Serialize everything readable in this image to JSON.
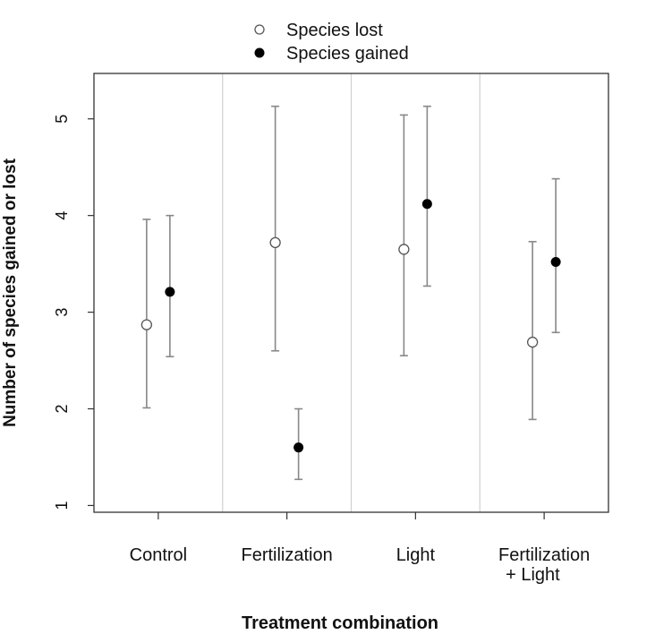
{
  "chart_data": {
    "type": "scatter",
    "xlabel": "Treatment combination",
    "ylabel": "Number of species gained or lost",
    "ylim": [
      0.93,
      5.47
    ],
    "yticks": [
      "1",
      "2",
      "3",
      "4",
      "5"
    ],
    "grid": false,
    "legend_position": "top",
    "categories": [
      "Control",
      "Fertilization",
      "Light",
      "Fertilization\n+ Light"
    ],
    "series": [
      {
        "name": "Species lost",
        "marker": "open-circle",
        "values": [
          2.87,
          3.72,
          3.65,
          2.69
        ],
        "lower": [
          2.01,
          2.6,
          2.55,
          1.89
        ],
        "upper": [
          3.96,
          5.13,
          5.04,
          3.73
        ]
      },
      {
        "name": "Species gained",
        "marker": "filled-circle",
        "values": [
          3.21,
          1.6,
          4.12,
          3.52
        ],
        "lower": [
          2.54,
          1.27,
          3.27,
          2.79
        ],
        "upper": [
          4.0,
          2.0,
          5.13,
          4.38
        ]
      }
    ],
    "colors": {
      "axis": "#333333",
      "errorbar": "#888888",
      "separator": "#d0d0d0",
      "marker_filled": "#000000",
      "marker_open_stroke": "#555555"
    }
  }
}
